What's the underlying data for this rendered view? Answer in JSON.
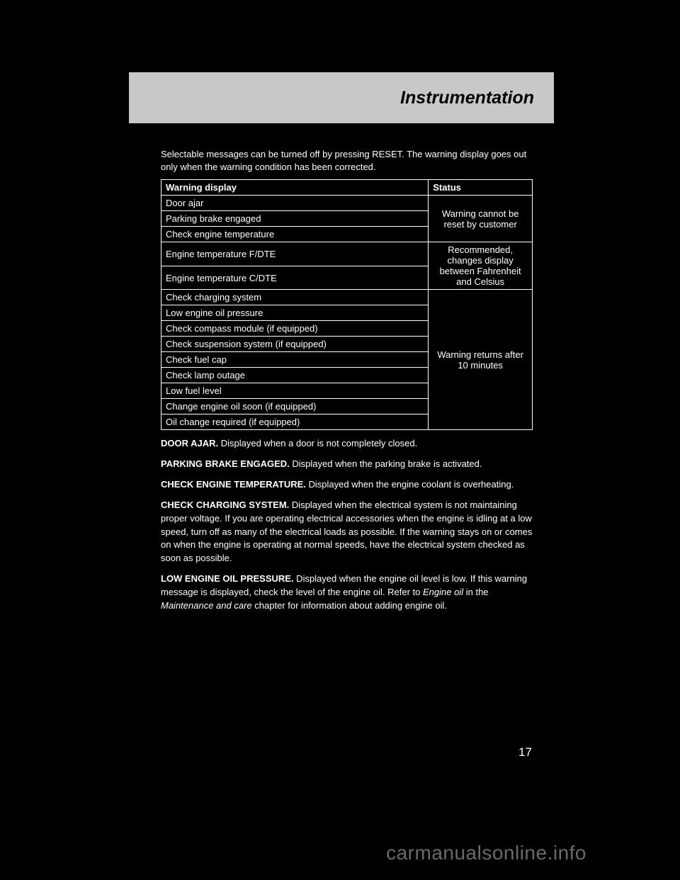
{
  "header": {
    "title": "Instrumentation"
  },
  "intro_text": "Selectable messages can be turned off by pressing RESET. The warning display goes out only when the warning condition has been corrected.",
  "table": {
    "columns": [
      "Warning display",
      "Status"
    ],
    "groups": [
      {
        "status": "Warning cannot be reset by customer",
        "rows": [
          "Door ajar",
          "Parking brake engaged",
          "Check engine temperature"
        ]
      },
      {
        "status": "Recommended, changes display between Fahrenheit and Celsius",
        "rows": [
          "Engine temperature F/DTE",
          "Engine temperature C/DTE"
        ]
      },
      {
        "status": "Warning returns after 10 minutes",
        "rows": [
          "Check charging system",
          "Low engine oil pressure",
          "Check compass module (if equipped)",
          "Check suspension system (if equipped)",
          "Check fuel cap",
          "Check lamp outage",
          "Low fuel level",
          "Change engine oil soon (if equipped)",
          "Oil change required (if equipped)"
        ]
      }
    ]
  },
  "paragraphs": {
    "door_ajar": {
      "label": "DOOR AJAR.",
      "text": " Displayed when a door is not completely closed."
    },
    "parking_brake": {
      "label": "PARKING BRAKE ENGAGED.",
      "text": " Displayed when the parking brake is activated."
    },
    "engine_temp": {
      "label": "CHECK ENGINE TEMPERATURE.",
      "text": " Displayed when the engine coolant is overheating."
    },
    "charging": {
      "label": "CHECK CHARGING SYSTEM.",
      "text": " Displayed when the electrical system is not maintaining proper voltage. If you are operating electrical accessories when the engine is idling at a low speed, turn off as many of the electrical loads as possible. If the warning stays on or comes on when the engine is operating at normal speeds, have the electrical system checked as soon as possible."
    },
    "oil_pressure": {
      "label": "LOW ENGINE OIL PRESSURE.",
      "text": " Displayed when the engine oil level is low. If this warning message is displayed, check the level of the engine oil. Refer to"
    },
    "oil_ref": {
      "italic": "Engine oil",
      "rest": " in the ",
      "italic2": "Maintenance and care",
      "rest2": " chapter for information about adding engine oil."
    }
  },
  "page_number": "17",
  "watermark": "carmanualsonline.info"
}
